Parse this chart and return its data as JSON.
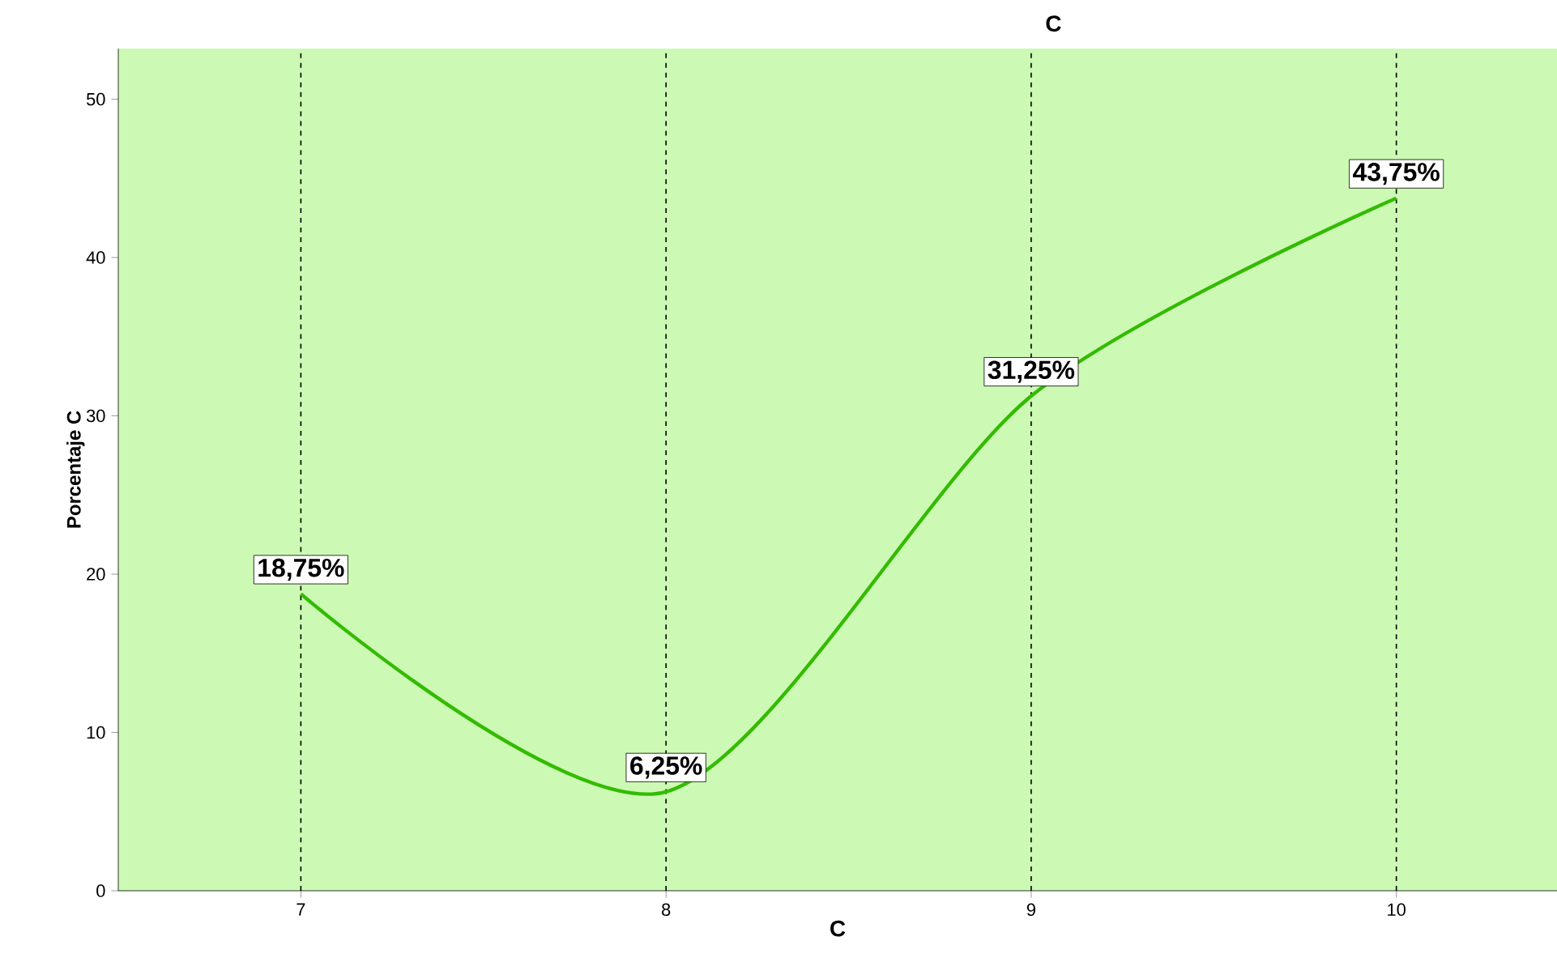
{
  "chart_data": {
    "type": "line",
    "title": "C",
    "xlabel": "C",
    "ylabel": "Porcentaje C",
    "x": [
      7,
      8,
      9,
      10
    ],
    "series": [
      {
        "color": "#33bb00",
        "values": [
          18.75,
          6.25,
          31.25,
          43.75
        ],
        "value_labels": [
          "18,75%",
          "6,25%",
          "31,25%",
          "43,75%"
        ]
      }
    ],
    "xlim": [
      6.5,
      10.44
    ],
    "ylim": [
      0,
      53.2
    ],
    "xticks": [
      7,
      8,
      9,
      10
    ],
    "yticks": [
      0,
      10,
      20,
      30,
      40,
      50
    ],
    "grid": "x",
    "marker": "none",
    "line_style": "solid"
  }
}
